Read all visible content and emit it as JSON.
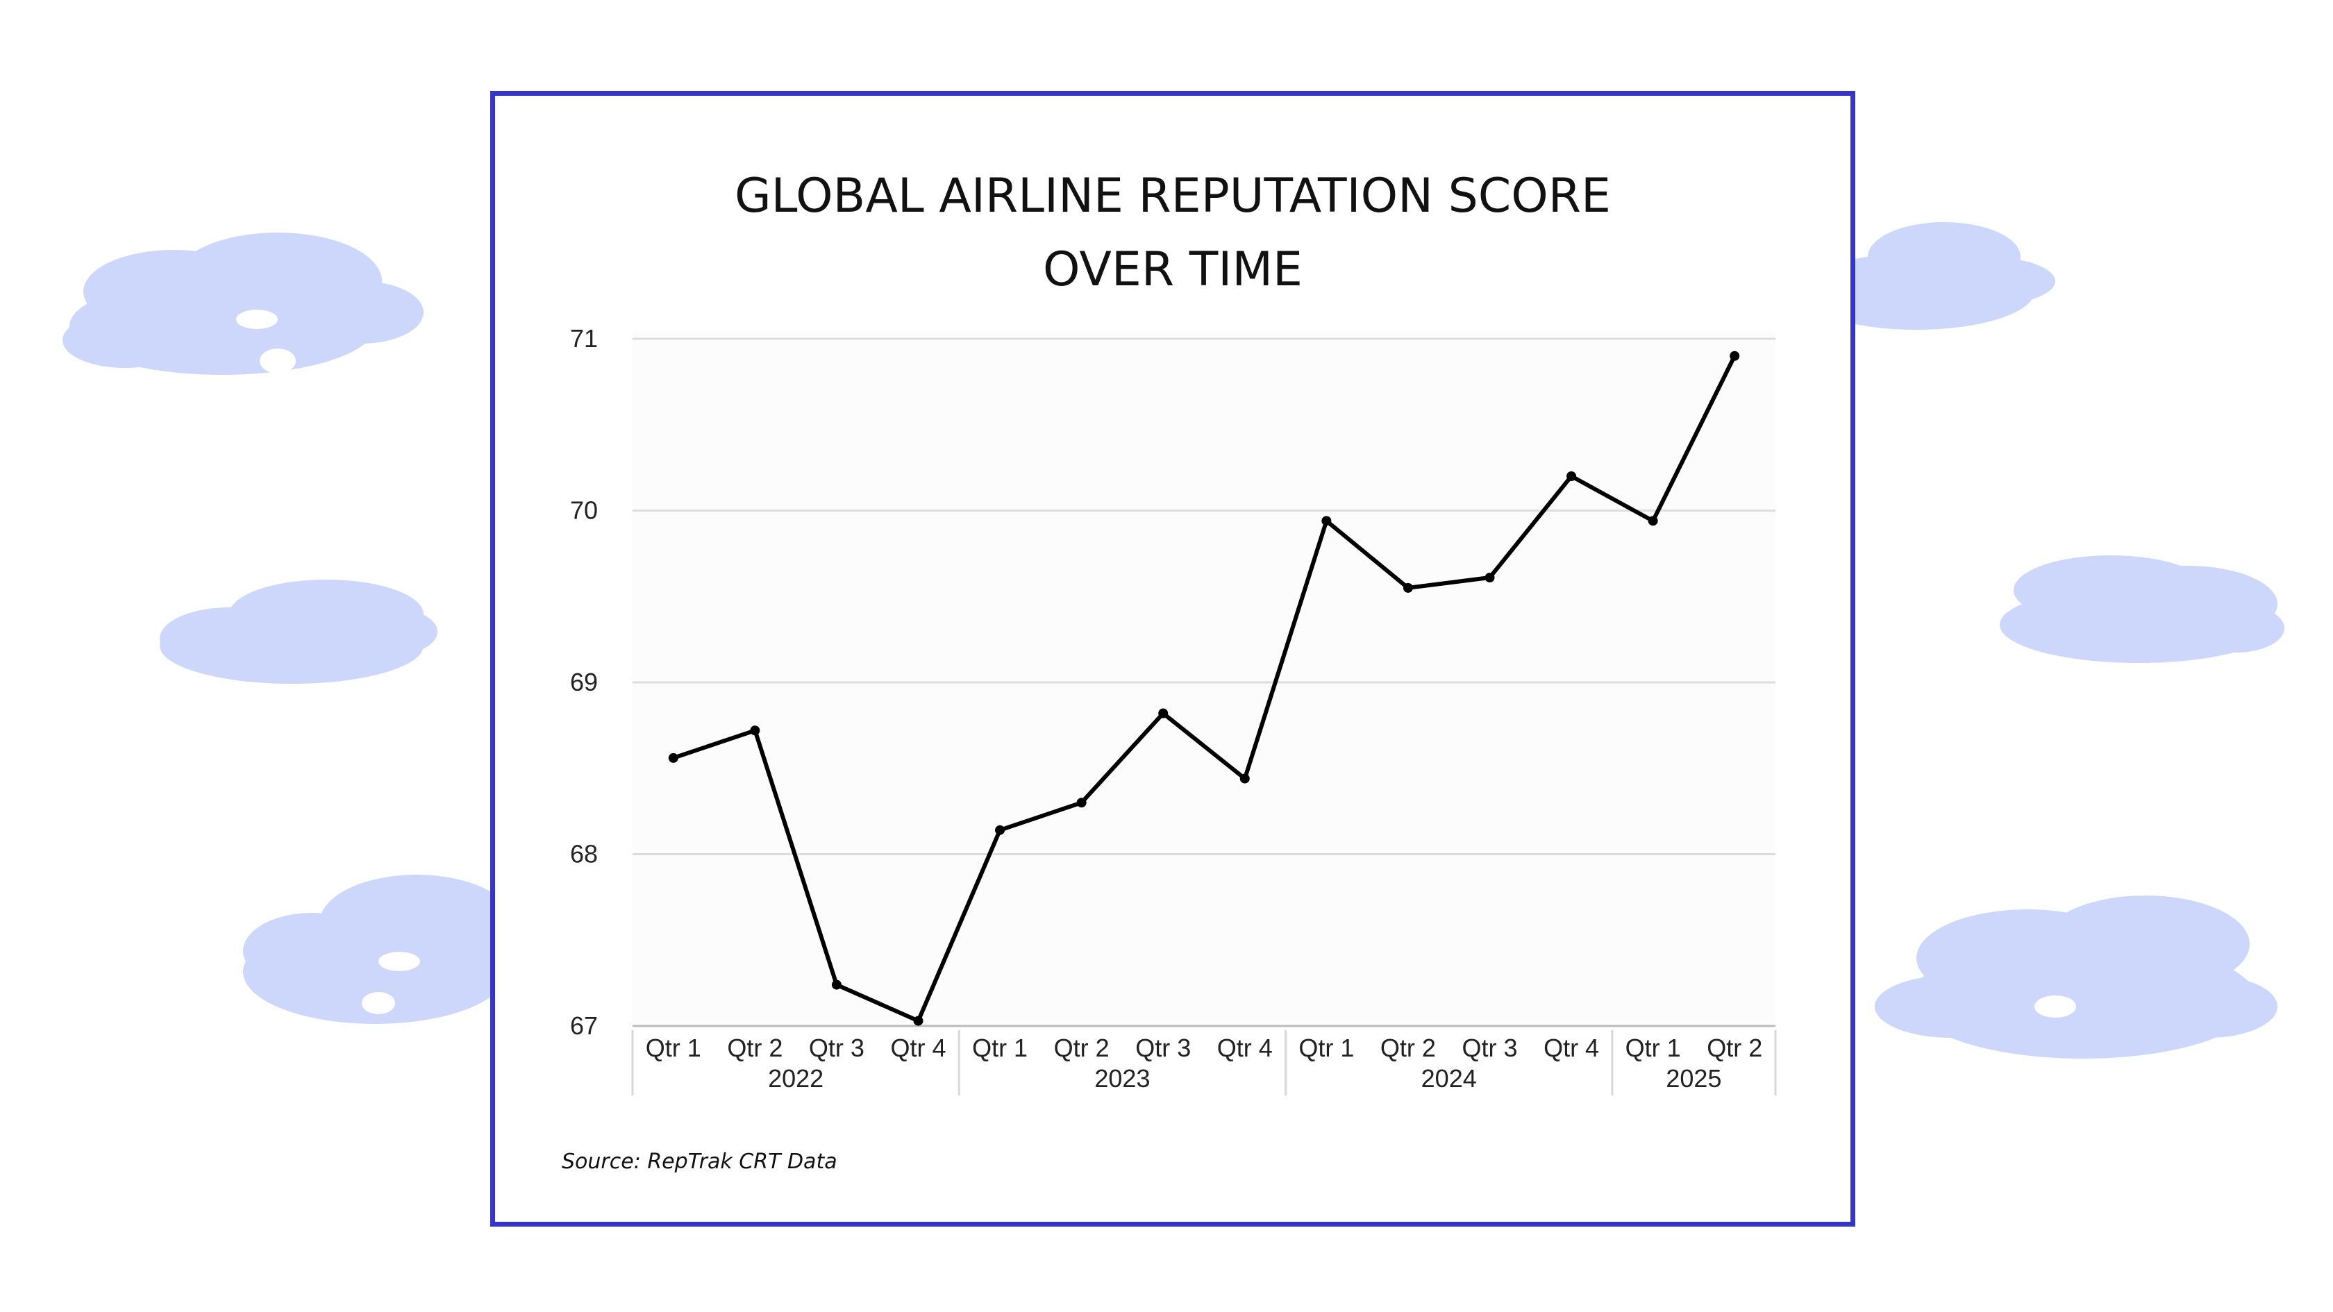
{
  "title_lines": [
    "GLOBAL AIRLINE REPUTATION SCORE",
    "OVER TIME"
  ],
  "source": "Source: RepTrak CRT Data",
  "colors": {
    "frame": "#3535c9",
    "cloud": "#cdd7fb",
    "line": "#000000",
    "grid": "#dddddd"
  },
  "chart_data": {
    "type": "line",
    "title": "GLOBAL AIRLINE REPUTATION SCORE OVER TIME",
    "xlabel": "",
    "ylabel": "",
    "ylim": [
      67,
      71
    ],
    "yticks": [
      "67",
      "68",
      "69",
      "70",
      "71"
    ],
    "grid": true,
    "legend": "none",
    "categories": [
      "Qtr 1",
      "Qtr 2",
      "Qtr 3",
      "Qtr 4",
      "Qtr 1",
      "Qtr 2",
      "Qtr 3",
      "Qtr 4",
      "Qtr 1",
      "Qtr 2",
      "Qtr 3",
      "Qtr 4",
      "Qtr 1",
      "Qtr 2"
    ],
    "years": [
      {
        "label": "2022",
        "count": 4
      },
      {
        "label": "2023",
        "count": 4
      },
      {
        "label": "2024",
        "count": 4
      },
      {
        "label": "2025",
        "count": 2
      }
    ],
    "series": [
      {
        "values": [
          68.56,
          68.72,
          67.24,
          67.03,
          68.14,
          68.3,
          68.82,
          68.44,
          69.94,
          69.55,
          69.61,
          70.2,
          69.94,
          70.9
        ]
      }
    ]
  }
}
